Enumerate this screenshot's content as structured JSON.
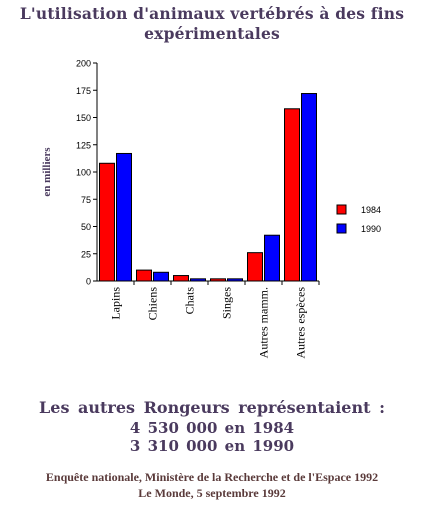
{
  "header": {
    "title_line1": "L'utilisation d'animaux vertébrés à des fins",
    "title_line2": "expérimentales"
  },
  "chart_data": {
    "type": "bar",
    "ylabel": "en milliers",
    "ylim": [
      0,
      200
    ],
    "yticks": [
      0,
      25,
      50,
      75,
      100,
      125,
      150,
      175,
      200
    ],
    "categories": [
      "Lapins",
      "Chiens",
      "Chats",
      "Singes",
      "Autres mamm.",
      "Autres espèces"
    ],
    "series": [
      {
        "name": "1984",
        "color": "#ff0000",
        "values": [
          108,
          10,
          5,
          2,
          26,
          158
        ]
      },
      {
        "name": "1990",
        "color": "#0000ff",
        "values": [
          117,
          8,
          2,
          2,
          42,
          172
        ]
      }
    ],
    "legend_position": "right"
  },
  "notes": {
    "line1": "Les autres Rongeurs   représentaient :",
    "line2": "4 530 000 en 1984",
    "line3": "3 310 000 en 1990"
  },
  "source": {
    "line1": "Enquête nationale, Ministère de la Recherche et de l'Espace 1992",
    "line2": "Le Monde, 5 septembre 1992"
  }
}
